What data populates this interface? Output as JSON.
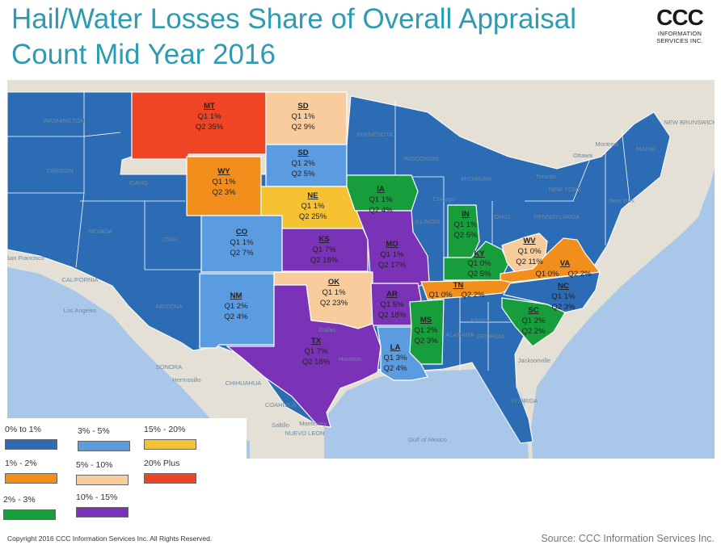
{
  "title": "Hail/Water Losses Share of Overall Appraisal Count Mid Year 2016",
  "logo": {
    "mark": "CCC",
    "line1": "INFORMATION",
    "line2": "SERVICES INC."
  },
  "legend": [
    {
      "label": "0% to 1%",
      "color": "#2b6cb5"
    },
    {
      "label": "3% - 5%",
      "color": "#5b9ce0"
    },
    {
      "label": "15% - 20%",
      "color": "#f6c232"
    },
    {
      "label": "1% - 2%",
      "color": "#f28e1c"
    },
    {
      "label": "5% - 10%",
      "color": "#f9cc9e"
    },
    {
      "label": "20% Plus",
      "color": "#ef4524"
    },
    {
      "label": "2% - 3%",
      "color": "#189d3c"
    },
    {
      "label": "10% - 15%",
      "color": "#7a33b6"
    }
  ],
  "states": [
    {
      "abbr": "MT",
      "q1": "Q1 1%",
      "q2": "Q2 35%"
    },
    {
      "abbr": "SD",
      "q1": "Q1 1%",
      "q2": "Q2 9%"
    },
    {
      "abbr": "SD",
      "q1": "Q1 2%",
      "q2": "Q2 5%"
    },
    {
      "abbr": "WY",
      "q1": "Q1 1%",
      "q2": "Q2 3%"
    },
    {
      "abbr": "IA",
      "q1": "Q1 1%",
      "q2": "Q2 4%"
    },
    {
      "abbr": "NE",
      "q1": "Q1 1%",
      "q2": "Q2 25%"
    },
    {
      "abbr": "IN",
      "q1": "Q1 1%",
      "q2": "Q2 5%"
    },
    {
      "abbr": "CO",
      "q1": "Q1 1%",
      "q2": "Q2 7%"
    },
    {
      "abbr": "KS",
      "q1": "Q1 7%",
      "q2": "Q2 18%"
    },
    {
      "abbr": "MO",
      "q1": "Q1 1%",
      "q2": "Q2 17%"
    },
    {
      "abbr": "WV",
      "q1": "Q1 0%",
      "q2": "Q2 11%"
    },
    {
      "abbr": "KY",
      "q1": "Q1 0%",
      "q2": "Q2 5%"
    },
    {
      "abbr": "VA",
      "q1": "Q1 0%",
      "q2": "Q2 2%"
    },
    {
      "abbr": "TN",
      "q1": "Q1 0%",
      "q2": "Q2 2%"
    },
    {
      "abbr": "NM",
      "q1": "Q1 2%",
      "q2": "Q2 4%"
    },
    {
      "abbr": "OK",
      "q1": "Q1 1%",
      "q2": "Q2 23%"
    },
    {
      "abbr": "AR",
      "q1": "Q1 5%",
      "q2": "Q2 18%"
    },
    {
      "abbr": "NC",
      "q1": "Q1 1%",
      "q2": "Q2 3%"
    },
    {
      "abbr": "SC",
      "q1": "Q1 2%",
      "q2": "Q2 2%"
    },
    {
      "abbr": "MS",
      "q1": "Q1 2%",
      "q2": "Q2 3%"
    },
    {
      "abbr": "TX",
      "q1": "Q1 7%",
      "q2": "Q2 18%"
    },
    {
      "abbr": "LA",
      "q1": "Q1 3%",
      "q2": "Q2 4%"
    }
  ],
  "basemap_labels": {
    "washington": "WASHINGTON",
    "oregon": "OREGON",
    "idaho": "IDAHO",
    "nevada": "NEVADA",
    "utah": "UTAH",
    "california": "CALIFORNIA",
    "arizona": "ARIZONA",
    "minnesota": "MINNESOTA",
    "wisconsin": "WISCONSIN",
    "michigan": "MICHIGAN",
    "illinois": "ILLINOIS",
    "ohio": "OHIO",
    "pennsylvania": "PENNSYLVANIA",
    "new_york": "NEW YORK",
    "maine": "MAINE",
    "georgia": "GEORGIA",
    "alabama": "ALABAMA",
    "florida": "FLORIDA",
    "sonora": "SONORA",
    "chihuahua": "CHIHUAHUA",
    "coahuila": "COAHUILA",
    "nuevo_leon": "NUEVO LEON",
    "gulf": "Gulf of Mexico",
    "new_brunswick": "NEW BRUNSWICK",
    "san_francisco": "San Francisco",
    "hermosillo": "Hermosillo",
    "monterrey": "Monterrey",
    "saltillo": "Saltillo",
    "new_york_city": "New York",
    "montreal": "Montreal",
    "ottawa": "Ottawa",
    "toronto": "Toronto",
    "chicago": "Chicago",
    "houston": "Houston",
    "los_angeles": "Los Angeles",
    "jacksonville": "Jacksonville",
    "dallas": "Dallas",
    "atlanta": "Atlanta"
  },
  "copyright": "Copyright 2016 CCC Information Services Inc.  All Rights Reserved.",
  "source": "Source: CCC Information Services Inc."
}
